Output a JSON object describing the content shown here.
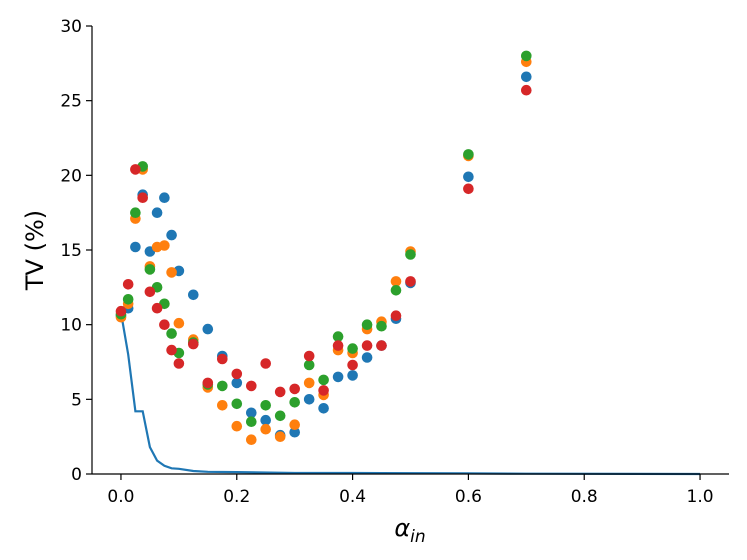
{
  "chart_data": {
    "type": "scatter",
    "title": "",
    "xlabel": "α",
    "xlabel_sub": "in",
    "ylabel": "TV (%)",
    "xlim": [
      -0.05,
      1.05
    ],
    "ylim": [
      0,
      30
    ],
    "xticks": [
      0.0,
      0.2,
      0.4,
      0.6,
      0.8,
      1.0
    ],
    "xtick_labels": [
      "0.0",
      "0.2",
      "0.4",
      "0.6",
      "0.8",
      "1.0"
    ],
    "yticks": [
      0,
      5,
      10,
      15,
      20,
      25,
      30
    ],
    "ytick_labels": [
      "0",
      "5",
      "10",
      "15",
      "20",
      "25",
      "30"
    ],
    "grid": false,
    "legend": "none",
    "series": [
      {
        "color": "#1f77b4",
        "kind": "scatter",
        "points": [
          [
            0.0,
            10.6
          ],
          [
            0.0125,
            11.1
          ],
          [
            0.025,
            15.2
          ],
          [
            0.0375,
            18.7
          ],
          [
            0.05,
            14.9
          ],
          [
            0.0625,
            17.5
          ],
          [
            0.075,
            18.5
          ],
          [
            0.0875,
            16.0
          ],
          [
            0.1,
            13.6
          ],
          [
            0.125,
            12.0
          ],
          [
            0.15,
            9.7
          ],
          [
            0.175,
            7.9
          ],
          [
            0.2,
            6.1
          ],
          [
            0.225,
            4.1
          ],
          [
            0.25,
            3.6
          ],
          [
            0.275,
            2.6
          ],
          [
            0.3,
            2.8
          ],
          [
            0.325,
            5.0
          ],
          [
            0.35,
            4.4
          ],
          [
            0.375,
            6.5
          ],
          [
            0.4,
            6.6
          ],
          [
            0.425,
            7.8
          ],
          [
            0.45,
            8.6
          ],
          [
            0.475,
            10.4
          ],
          [
            0.5,
            12.8
          ],
          [
            0.6,
            19.9
          ],
          [
            0.7,
            26.6
          ]
        ]
      },
      {
        "color": "#ff7f0e",
        "kind": "scatter",
        "points": [
          [
            0.0,
            10.5
          ],
          [
            0.0125,
            11.4
          ],
          [
            0.025,
            17.1
          ],
          [
            0.0375,
            20.4
          ],
          [
            0.05,
            13.9
          ],
          [
            0.0625,
            15.2
          ],
          [
            0.075,
            15.3
          ],
          [
            0.0875,
            13.5
          ],
          [
            0.1,
            10.1
          ],
          [
            0.125,
            9.0
          ],
          [
            0.15,
            5.8
          ],
          [
            0.175,
            4.6
          ],
          [
            0.2,
            3.2
          ],
          [
            0.225,
            2.3
          ],
          [
            0.25,
            3.0
          ],
          [
            0.275,
            2.5
          ],
          [
            0.3,
            3.3
          ],
          [
            0.325,
            6.1
          ],
          [
            0.35,
            5.3
          ],
          [
            0.375,
            8.3
          ],
          [
            0.4,
            8.1
          ],
          [
            0.425,
            9.7
          ],
          [
            0.45,
            10.2
          ],
          [
            0.475,
            12.9
          ],
          [
            0.5,
            14.9
          ],
          [
            0.6,
            21.3
          ],
          [
            0.7,
            27.6
          ]
        ]
      },
      {
        "color": "#2ca02c",
        "kind": "scatter",
        "points": [
          [
            0.0,
            10.7
          ],
          [
            0.0125,
            11.7
          ],
          [
            0.025,
            17.5
          ],
          [
            0.0375,
            20.6
          ],
          [
            0.05,
            13.7
          ],
          [
            0.0625,
            12.5
          ],
          [
            0.075,
            11.4
          ],
          [
            0.0875,
            9.4
          ],
          [
            0.1,
            8.1
          ],
          [
            0.125,
            8.8
          ],
          [
            0.15,
            6.0
          ],
          [
            0.175,
            5.9
          ],
          [
            0.2,
            4.7
          ],
          [
            0.225,
            3.5
          ],
          [
            0.25,
            4.6
          ],
          [
            0.275,
            3.9
          ],
          [
            0.3,
            4.8
          ],
          [
            0.325,
            7.3
          ],
          [
            0.35,
            6.3
          ],
          [
            0.375,
            9.2
          ],
          [
            0.4,
            8.4
          ],
          [
            0.425,
            10.0
          ],
          [
            0.45,
            9.9
          ],
          [
            0.475,
            12.3
          ],
          [
            0.5,
            14.7
          ],
          [
            0.6,
            21.4
          ],
          [
            0.7,
            28.0
          ]
        ]
      },
      {
        "color": "#d62728",
        "kind": "scatter",
        "points": [
          [
            0.0,
            10.9
          ],
          [
            0.0125,
            12.7
          ],
          [
            0.025,
            20.4
          ],
          [
            0.0375,
            18.5
          ],
          [
            0.05,
            12.2
          ],
          [
            0.0625,
            11.1
          ],
          [
            0.075,
            10.0
          ],
          [
            0.0875,
            8.3
          ],
          [
            0.1,
            7.4
          ],
          [
            0.125,
            8.7
          ],
          [
            0.15,
            6.1
          ],
          [
            0.175,
            7.7
          ],
          [
            0.2,
            6.7
          ],
          [
            0.225,
            5.9
          ],
          [
            0.25,
            7.4
          ],
          [
            0.275,
            5.5
          ],
          [
            0.3,
            5.7
          ],
          [
            0.325,
            7.9
          ],
          [
            0.35,
            5.6
          ],
          [
            0.375,
            8.6
          ],
          [
            0.4,
            7.3
          ],
          [
            0.425,
            8.6
          ],
          [
            0.45,
            8.6
          ],
          [
            0.475,
            10.6
          ],
          [
            0.5,
            12.9
          ],
          [
            0.6,
            19.1
          ],
          [
            0.7,
            25.7
          ]
        ]
      },
      {
        "color": "#1f77b4",
        "kind": "line",
        "points": [
          [
            0.0,
            10.8
          ],
          [
            0.0125,
            8.0
          ],
          [
            0.025,
            4.2
          ],
          [
            0.0375,
            4.2
          ],
          [
            0.05,
            1.8
          ],
          [
            0.0625,
            0.9
          ],
          [
            0.075,
            0.55
          ],
          [
            0.0875,
            0.38
          ],
          [
            0.1,
            0.35
          ],
          [
            0.125,
            0.2
          ],
          [
            0.15,
            0.15
          ],
          [
            0.2,
            0.13
          ],
          [
            0.3,
            0.07
          ],
          [
            0.4,
            0.07
          ],
          [
            0.6,
            0.04
          ],
          [
            0.7,
            0.02
          ],
          [
            1.0,
            0.0
          ]
        ]
      }
    ]
  }
}
